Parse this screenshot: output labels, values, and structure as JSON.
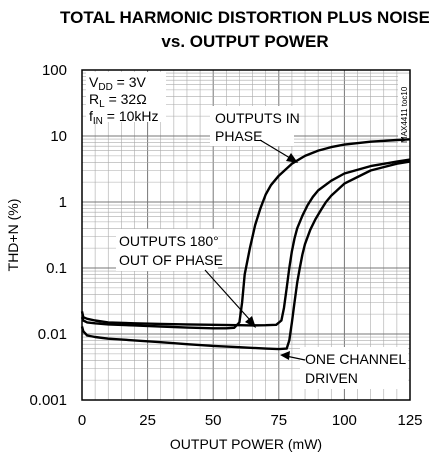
{
  "chart_data": {
    "type": "line",
    "title": "TOTAL HARMONIC DISTORTION PLUS NOISE",
    "subtitle": "vs. OUTPUT POWER",
    "xlabel": "OUTPUT POWER (mW)",
    "ylabel": "THD+N (%)",
    "xlim": [
      0,
      125
    ],
    "ylim": [
      0.001,
      100
    ],
    "yscale": "log",
    "grid": true,
    "x_ticks": [
      0,
      25,
      50,
      75,
      100,
      125
    ],
    "x_tick_labels": [
      "0",
      "25",
      "50",
      "75",
      "100",
      "125"
    ],
    "y_ticks": [
      0.001,
      0.01,
      0.1,
      1,
      10,
      100
    ],
    "y_tick_labels": [
      "0.001",
      "0.01",
      "0.1",
      "1",
      "10",
      "100"
    ],
    "conditions": {
      "vdd": {
        "main": "V",
        "sub": "DD",
        "rest": " = 3V"
      },
      "rl": {
        "main": "R",
        "sub": "L",
        "rest": " = 32Ω"
      },
      "fin": {
        "main": "f",
        "sub": "IN",
        "rest": " = 10kHz"
      }
    },
    "figure_code": "MAX4411 toc10",
    "annotations": [
      {
        "lines": [
          "OUTPUTS IN",
          "PHASE"
        ]
      },
      {
        "lines": [
          "OUTPUTS 180°",
          "OUT OF PHASE"
        ]
      },
      {
        "lines": [
          "ONE CHANNEL",
          "DRIVEN"
        ]
      }
    ],
    "series": [
      {
        "x": [
          0,
          0.5,
          2,
          5,
          10,
          20,
          30,
          40,
          50,
          55,
          58,
          60,
          61,
          62,
          64,
          66,
          68,
          70,
          72,
          75,
          80,
          85,
          90,
          95,
          100,
          110,
          120,
          125
        ],
        "y": [
          0.018,
          0.016,
          0.015,
          0.0145,
          0.014,
          0.0135,
          0.013,
          0.0125,
          0.0122,
          0.0122,
          0.0124,
          0.015,
          0.03,
          0.08,
          0.2,
          0.45,
          0.8,
          1.3,
          1.8,
          2.5,
          3.8,
          5.0,
          6.0,
          6.8,
          7.4,
          8.2,
          8.7,
          8.9
        ]
      },
      {
        "x": [
          0,
          0.5,
          2,
          5,
          10,
          20,
          30,
          40,
          50,
          60,
          65,
          70,
          74,
          76,
          77,
          78,
          79,
          80,
          81,
          82,
          84,
          86,
          88,
          90,
          95,
          100,
          110,
          120,
          125
        ],
        "y": [
          0.022,
          0.018,
          0.017,
          0.016,
          0.015,
          0.0145,
          0.0142,
          0.014,
          0.0138,
          0.0136,
          0.0135,
          0.0136,
          0.0138,
          0.016,
          0.025,
          0.05,
          0.1,
          0.18,
          0.28,
          0.4,
          0.62,
          0.9,
          1.2,
          1.5,
          2.1,
          2.7,
          3.5,
          4.1,
          4.4
        ]
      },
      {
        "x": [
          0,
          0.5,
          2,
          5,
          10,
          20,
          30,
          40,
          50,
          60,
          70,
          75,
          78,
          79,
          80,
          81,
          82,
          83,
          84,
          85,
          87,
          89,
          91,
          93,
          95,
          100,
          110,
          120,
          125
        ],
        "y": [
          0.013,
          0.011,
          0.0095,
          0.009,
          0.0085,
          0.008,
          0.0075,
          0.007,
          0.0066,
          0.0063,
          0.006,
          0.0059,
          0.006,
          0.008,
          0.015,
          0.03,
          0.06,
          0.1,
          0.16,
          0.23,
          0.38,
          0.55,
          0.75,
          1.0,
          1.25,
          1.9,
          3.0,
          3.8,
          4.1
        ]
      }
    ]
  }
}
